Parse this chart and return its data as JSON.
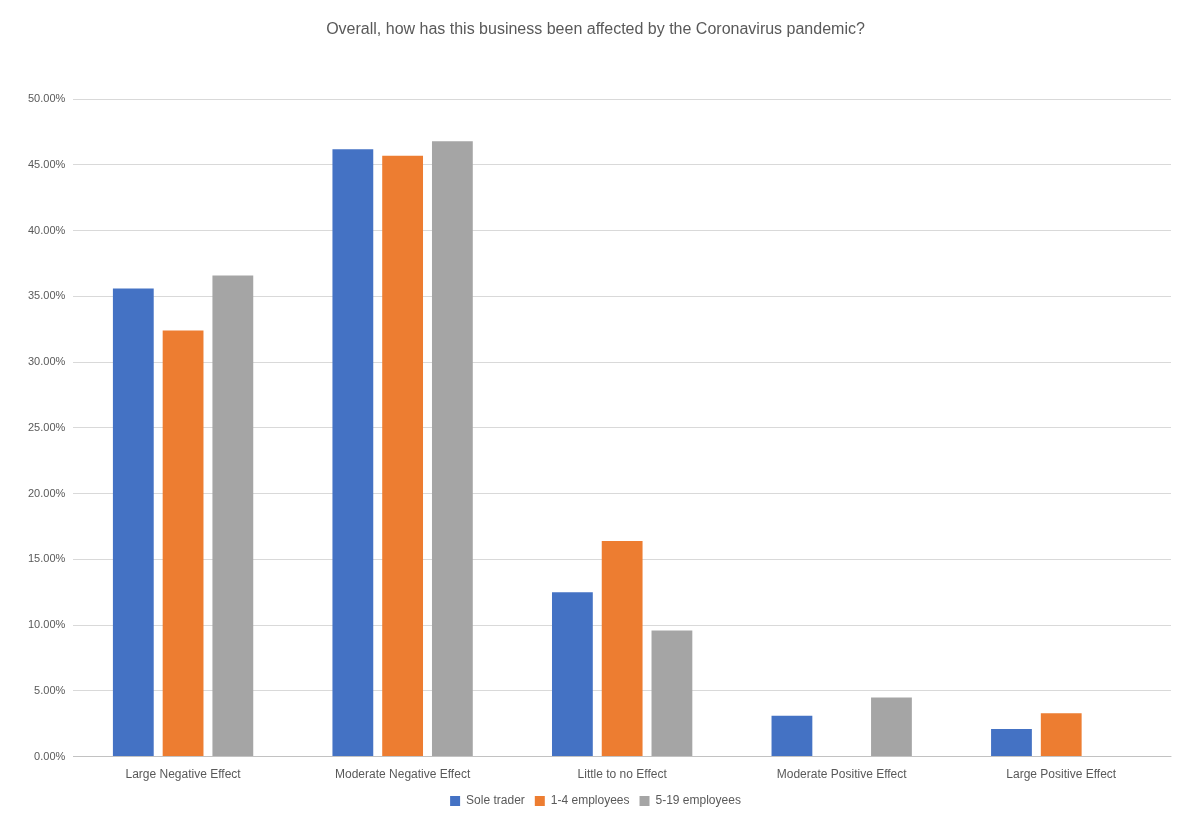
{
  "chart_data": {
    "type": "bar",
    "title": "Overall, how has this business been affected by the Coronavirus pandemic?",
    "categories": [
      "Large Negative Effect",
      "Moderate Negative Effect",
      "Little to no Effect",
      "Moderate Positive Effect",
      "Large Positive Effect"
    ],
    "series": [
      {
        "name": "Sole trader",
        "color": "#4472c4",
        "values": [
          35.6,
          46.2,
          12.5,
          3.1,
          2.1
        ]
      },
      {
        "name": "1-4 employees",
        "color": "#ed7d31",
        "values": [
          32.4,
          45.7,
          16.4,
          0,
          3.3
        ]
      },
      {
        "name": "5-19 employees",
        "color": "#a5a5a5",
        "values": [
          36.6,
          46.8,
          9.6,
          4.5,
          0
        ]
      }
    ],
    "ylim": [
      0,
      50
    ],
    "yticks": [
      {
        "value": 0,
        "label": "0.00%"
      },
      {
        "value": 5,
        "label": "5.00%"
      },
      {
        "value": 10,
        "label": "10.00%"
      },
      {
        "value": 15,
        "label": "15.00%"
      },
      {
        "value": 20,
        "label": "20.00%"
      },
      {
        "value": 25,
        "label": "25.00%"
      },
      {
        "value": 30,
        "label": "30.00%"
      },
      {
        "value": 35,
        "label": "35.00%"
      },
      {
        "value": 40,
        "label": "40.00%"
      },
      {
        "value": 45,
        "label": "45.00%"
      },
      {
        "value": 50,
        "label": "50.00%"
      }
    ],
    "grid": "y",
    "legend": "bottom"
  }
}
